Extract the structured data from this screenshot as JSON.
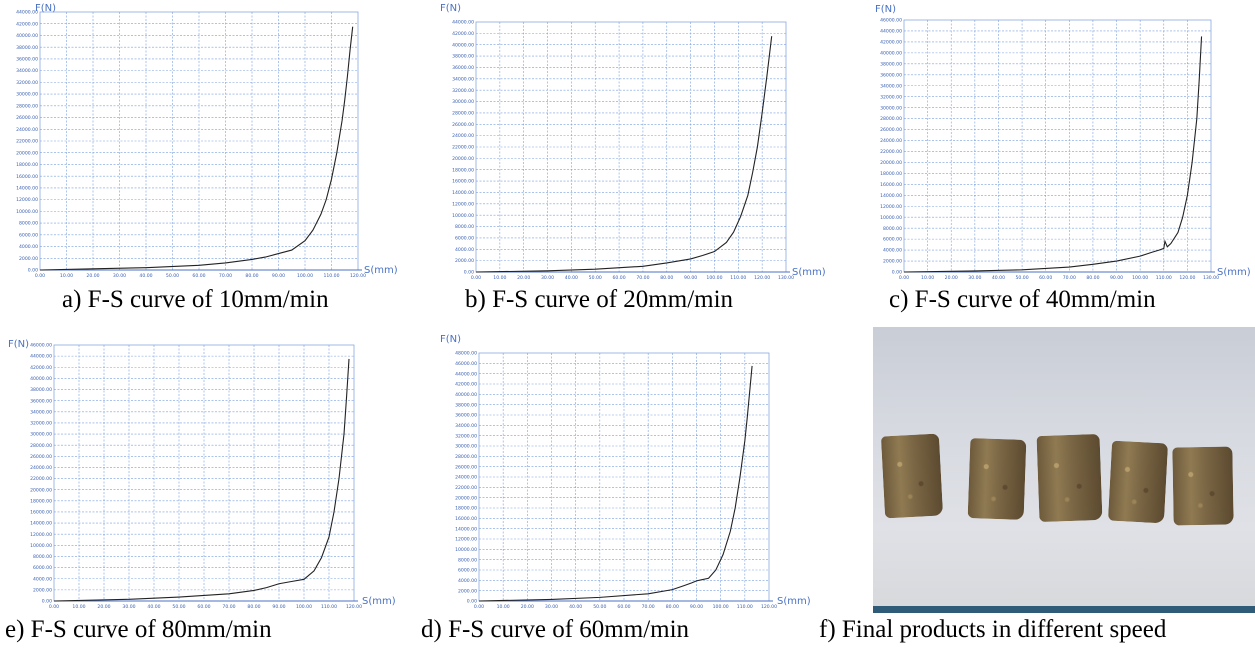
{
  "chart_data": [
    {
      "id": "a",
      "type": "line",
      "caption": "a) F-S curve of 10mm/min",
      "ylabel": "F(N)",
      "xlabel": "S(mm)",
      "xlim": [
        0,
        120
      ],
      "ylim": [
        0,
        44000
      ],
      "x_ticks": [
        "0.00",
        "10.00",
        "20.00",
        "30.00",
        "40.00",
        "50.00",
        "60.00",
        "70.00",
        "80.00",
        "90.00",
        "100.00",
        "110.00",
        "120.00"
      ],
      "y_ticks": [
        "0.00",
        "2000.00",
        "4000.00",
        "6000.00",
        "8000.00",
        "10000.00",
        "12000.00",
        "14000.00",
        "16000.00",
        "18000.00",
        "20000.00",
        "22000.00",
        "24000.00",
        "26000.00",
        "28000.00",
        "30000.00",
        "32000.00",
        "34000.00",
        "36000.00",
        "38000.00",
        "40000.00",
        "42000.00",
        "44000.00"
      ],
      "series": [
        {
          "x": [
            0,
            20,
            40,
            60,
            70,
            80,
            85,
            90,
            95,
            100,
            103,
            106,
            108,
            110,
            112,
            114,
            115,
            116,
            117,
            118
          ],
          "y": [
            0,
            200,
            400,
            800,
            1200,
            1800,
            2200,
            2800,
            3400,
            5000,
            6800,
            9500,
            12000,
            15500,
            20000,
            25500,
            29000,
            33000,
            37500,
            41500
          ]
        }
      ]
    },
    {
      "id": "b",
      "type": "line",
      "caption": "b) F-S curve of 20mm/min",
      "ylabel": "F(N)",
      "xlabel": "S(mm)",
      "xlim": [
        0,
        130
      ],
      "ylim": [
        0,
        44000
      ],
      "x_ticks": [
        "0.00",
        "10.00",
        "20.00",
        "30.00",
        "40.00",
        "50.00",
        "60.00",
        "70.00",
        "80.00",
        "90.00",
        "100.00",
        "110.00",
        "120.00",
        "130.00"
      ],
      "y_ticks": [
        "0.00",
        "2000.00",
        "4000.00",
        "6000.00",
        "8000.00",
        "10000.00",
        "12000.00",
        "14000.00",
        "16000.00",
        "18000.00",
        "20000.00",
        "22000.00",
        "24000.00",
        "26000.00",
        "28000.00",
        "30000.00",
        "32000.00",
        "34000.00",
        "36000.00",
        "38000.00",
        "40000.00",
        "42000.00",
        "44000.00"
      ],
      "series": [
        {
          "x": [
            0,
            30,
            50,
            70,
            80,
            90,
            95,
            100,
            105,
            108,
            111,
            114,
            116,
            118,
            120,
            122,
            123,
            124
          ],
          "y": [
            0,
            200,
            500,
            1000,
            1600,
            2300,
            2900,
            3600,
            5200,
            7000,
            9800,
            13500,
            17500,
            22000,
            28000,
            34500,
            38000,
            41500
          ]
        }
      ]
    },
    {
      "id": "c",
      "type": "line",
      "caption": "c) F-S curve of 40mm/min",
      "ylabel": "F(N)",
      "xlabel": "S(mm)",
      "xlim": [
        0,
        130
      ],
      "ylim": [
        0,
        46000
      ],
      "x_ticks": [
        "0.00",
        "10.00",
        "20.00",
        "30.00",
        "40.00",
        "50.00",
        "60.00",
        "70.00",
        "80.00",
        "90.00",
        "100.00",
        "110.00",
        "120.00",
        "130.00"
      ],
      "y_ticks": [
        "0.00",
        "2000.00",
        "4000.00",
        "6000.00",
        "8000.00",
        "10000.00",
        "12000.00",
        "14000.00",
        "16000.00",
        "18000.00",
        "20000.00",
        "22000.00",
        "24000.00",
        "26000.00",
        "28000.00",
        "30000.00",
        "32000.00",
        "34000.00",
        "36000.00",
        "38000.00",
        "40000.00",
        "42000.00",
        "44000.00",
        "46000.00"
      ],
      "series": [
        {
          "x": [
            0,
            30,
            50,
            70,
            80,
            90,
            100,
            105,
            108,
            110,
            110.5,
            111.5,
            113,
            116,
            118,
            120,
            122,
            124,
            125,
            126
          ],
          "y": [
            0,
            200,
            400,
            900,
            1400,
            2000,
            2900,
            3600,
            4000,
            4300,
            5600,
            4600,
            5200,
            7200,
            10000,
            14000,
            20000,
            28000,
            35000,
            43000
          ]
        }
      ]
    },
    {
      "id": "e",
      "type": "line",
      "caption": "e) F-S curve of 80mm/min",
      "ylabel": "F(N)",
      "xlabel": "S(mm)",
      "xlim": [
        0,
        120
      ],
      "ylim": [
        0,
        46000
      ],
      "x_ticks": [
        "0.00",
        "10.00",
        "20.00",
        "30.00",
        "40.00",
        "50.00",
        "60.00",
        "70.00",
        "80.00",
        "90.00",
        "100.00",
        "110.00",
        "120.00"
      ],
      "y_ticks": [
        "0.00",
        "2000.00",
        "4000.00",
        "6000.00",
        "8000.00",
        "10000.00",
        "12000.00",
        "14000.00",
        "16000.00",
        "18000.00",
        "20000.00",
        "22000.00",
        "24000.00",
        "26000.00",
        "28000.00",
        "30000.00",
        "32000.00",
        "34000.00",
        "36000.00",
        "38000.00",
        "40000.00",
        "42000.00",
        "44000.00",
        "46000.00"
      ],
      "series": [
        {
          "x": [
            0,
            30,
            50,
            70,
            80,
            85,
            90,
            95,
            100,
            104,
            107,
            110,
            112,
            114,
            116,
            117,
            118
          ],
          "y": [
            0,
            300,
            700,
            1300,
            1900,
            2400,
            3100,
            3500,
            3900,
            5400,
            7800,
            11500,
            16000,
            22000,
            30000,
            36500,
            43500
          ]
        }
      ]
    },
    {
      "id": "d",
      "type": "line",
      "caption": "d) F-S curve of 60mm/min",
      "ylabel": "F(N)",
      "xlabel": "S(mm)",
      "xlim": [
        0,
        120
      ],
      "ylim": [
        0,
        48000
      ],
      "x_ticks": [
        "0.00",
        "10.00",
        "20.00",
        "30.00",
        "40.00",
        "50.00",
        "60.00",
        "70.00",
        "80.00",
        "90.00",
        "100.00",
        "110.00",
        "120.00"
      ],
      "y_ticks": [
        "0.00",
        "2000.00",
        "4000.00",
        "6000.00",
        "8000.00",
        "10000.00",
        "12000.00",
        "14000.00",
        "16000.00",
        "18000.00",
        "20000.00",
        "22000.00",
        "24000.00",
        "26000.00",
        "28000.00",
        "30000.00",
        "32000.00",
        "34000.00",
        "36000.00",
        "38000.00",
        "40000.00",
        "42000.00",
        "44000.00",
        "46000.00",
        "48000.00"
      ],
      "series": [
        {
          "x": [
            0,
            30,
            50,
            70,
            80,
            85,
            88,
            90,
            92,
            95,
            98,
            101,
            104,
            106,
            108,
            110,
            111,
            112,
            113
          ],
          "y": [
            0,
            300,
            700,
            1400,
            2200,
            3000,
            3500,
            3900,
            4100,
            4400,
            6000,
            9000,
            13500,
            18000,
            24000,
            31000,
            35500,
            40500,
            45500
          ]
        }
      ]
    }
  ],
  "photo": {
    "caption": "f) Final products in different speed"
  },
  "colors": {
    "grid": "#7aa0e0",
    "axis": "#4a72c4",
    "curve": "#222222"
  }
}
